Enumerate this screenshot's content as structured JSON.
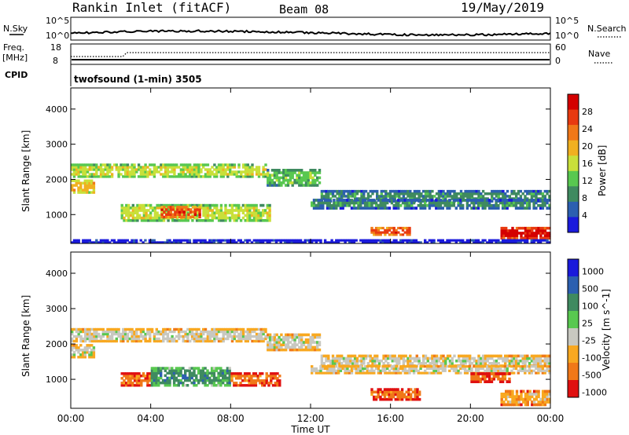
{
  "header": {
    "station": "Rankin Inlet (fitACF)",
    "beam": "Beam 08",
    "date": "19/May/2019"
  },
  "strip_panels": {
    "nsky_label": "N.Sky",
    "nsky_ticks": [
      "10^5",
      "10^0"
    ],
    "nsky_right_ticks": [
      "10^5",
      "10^0"
    ],
    "nsearch_label": "N.Search",
    "freq_label_top": "Freq.",
    "freq_label_bottom": "[MHz]",
    "freq_ticks": [
      "18",
      "8"
    ],
    "nave_label": "Nave",
    "nave_ticks": [
      "60",
      "0"
    ],
    "cpid_label": "CPID",
    "cpid_text": "twofsound (1-min) 3505"
  },
  "x_axis": {
    "label": "Time UT",
    "ticks": [
      "00:00",
      "04:00",
      "08:00",
      "12:00",
      "16:00",
      "20:00",
      "00:00"
    ]
  },
  "colors": {
    "power": [
      "#1a1adc",
      "#2c5fb0",
      "#3f8a60",
      "#58c850",
      "#c9e03a",
      "#f0b020",
      "#f07818",
      "#e83a10",
      "#d40000"
    ],
    "velocity": [
      "#e01010",
      "#f07818",
      "#f8a820",
      "#c8c8c0",
      "#58c850",
      "#3f8a60",
      "#2c5fb0",
      "#1a1adc"
    ]
  },
  "chart_data": [
    {
      "type": "heatmap",
      "title": "Power",
      "xlabel": "Time UT",
      "ylabel": "Slant Range [km]",
      "yticks": [
        "1000",
        "2000",
        "3000",
        "4000"
      ],
      "ylim": [
        180,
        4600
      ],
      "colorbar_label": "Power [dB]",
      "colorbar_ticks": [
        "4",
        "8",
        "12",
        "16",
        "20",
        "24",
        "28"
      ],
      "bands": [
        {
          "t0": 0.0,
          "t1": 9.8,
          "r0": 2050,
          "r1": 2450,
          "level": 4
        },
        {
          "t0": 9.8,
          "t1": 12.5,
          "r0": 1800,
          "r1": 2300,
          "level": 3
        },
        {
          "t0": 12.5,
          "t1": 24.0,
          "r0": 1350,
          "r1": 1700,
          "level": 2
        },
        {
          "t0": 0.0,
          "t1": 1.2,
          "r0": 1600,
          "r1": 2000,
          "level": 5
        },
        {
          "t0": 2.5,
          "t1": 10.0,
          "r0": 800,
          "r1": 1300,
          "level": 4
        },
        {
          "t0": 4.5,
          "t1": 6.5,
          "r0": 900,
          "r1": 1250,
          "level": 7
        },
        {
          "t0": 12.0,
          "t1": 24.0,
          "r0": 1150,
          "r1": 1450,
          "level": 2
        },
        {
          "t0": 15.0,
          "t1": 17.0,
          "r0": 400,
          "r1": 650,
          "level": 7
        },
        {
          "t0": 21.5,
          "t1": 24.0,
          "r0": 300,
          "r1": 650,
          "level": 8
        },
        {
          "t0": 0.0,
          "t1": 24.0,
          "r0": 180,
          "r1": 300,
          "level": 1
        }
      ]
    },
    {
      "type": "heatmap",
      "title": "Velocity",
      "xlabel": "Time UT",
      "ylabel": "Slant Range [km]",
      "yticks": [
        "1000",
        "2000",
        "3000",
        "4000"
      ],
      "ylim": [
        180,
        4600
      ],
      "colorbar_label": "Velocity [m s^-1]",
      "colorbar_ticks": [
        "1000",
        "500",
        "100",
        "25",
        "-25",
        "-100",
        "-500",
        "-1000"
      ],
      "bands": [
        {
          "t0": 0.0,
          "t1": 9.8,
          "r0": 2050,
          "r1": 2450,
          "level": 3
        },
        {
          "t0": 9.8,
          "t1": 12.5,
          "r0": 1800,
          "r1": 2300,
          "level": 3
        },
        {
          "t0": 12.5,
          "t1": 24.0,
          "r0": 1350,
          "r1": 1700,
          "level": 3
        },
        {
          "t0": 0.0,
          "t1": 1.2,
          "r0": 1600,
          "r1": 2000,
          "level": 3
        },
        {
          "t0": 2.5,
          "t1": 4.0,
          "r0": 800,
          "r1": 1200,
          "level": 1
        },
        {
          "t0": 4.0,
          "t1": 8.0,
          "r0": 800,
          "r1": 1350,
          "level": 5
        },
        {
          "t0": 8.0,
          "t1": 10.5,
          "r0": 800,
          "r1": 1200,
          "level": 1
        },
        {
          "t0": 12.0,
          "t1": 24.0,
          "r0": 1150,
          "r1": 1400,
          "level": 3
        },
        {
          "t0": 15.0,
          "t1": 17.5,
          "r0": 400,
          "r1": 750,
          "level": 1
        },
        {
          "t0": 20.0,
          "t1": 22.0,
          "r0": 900,
          "r1": 1200,
          "level": 1
        },
        {
          "t0": 21.5,
          "t1": 24.0,
          "r0": 250,
          "r1": 700,
          "level": 2
        }
      ]
    }
  ]
}
